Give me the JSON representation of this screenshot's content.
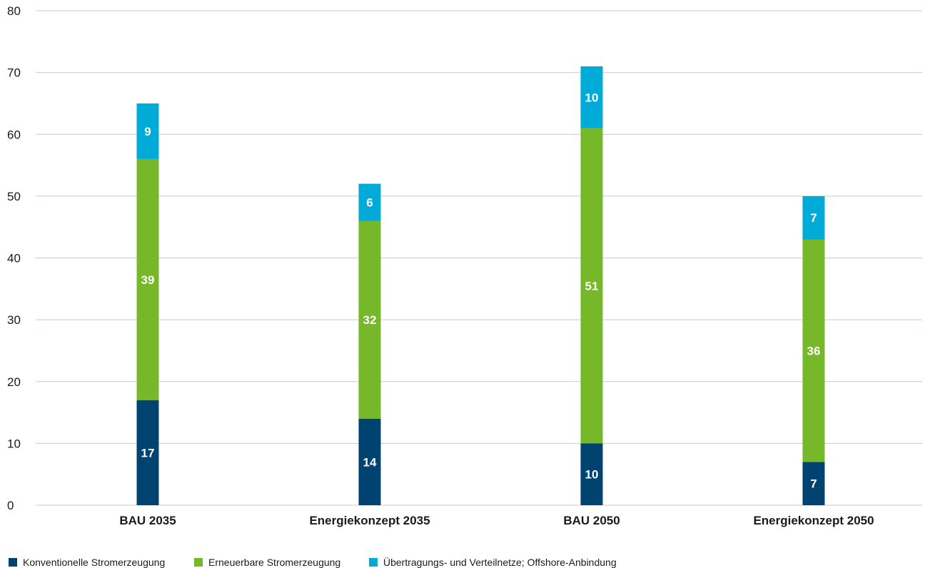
{
  "chart_data": {
    "type": "bar",
    "stacked": true,
    "categories": [
      "BAU 2035",
      "Energiekonzept 2035",
      "BAU 2050",
      "Energiekonzept 2050"
    ],
    "series": [
      {
        "name": "Konventionelle Stromerzeugung",
        "color": "#004270",
        "values": [
          17,
          14,
          10,
          7
        ]
      },
      {
        "name": "Erneuerbare Stromerzeugung",
        "color": "#76b82a",
        "values": [
          39,
          32,
          51,
          36
        ]
      },
      {
        "name": "Übertragungs- und Verteilnetze; Offshore-Anbindung",
        "color": "#00abd8",
        "values": [
          9,
          6,
          10,
          7
        ]
      }
    ],
    "ylim": [
      0,
      80
    ],
    "yticks": [
      "0",
      "10",
      "20",
      "30",
      "40",
      "50",
      "60",
      "70",
      "80"
    ],
    "grid": true,
    "legend_position": "bottom-left"
  }
}
